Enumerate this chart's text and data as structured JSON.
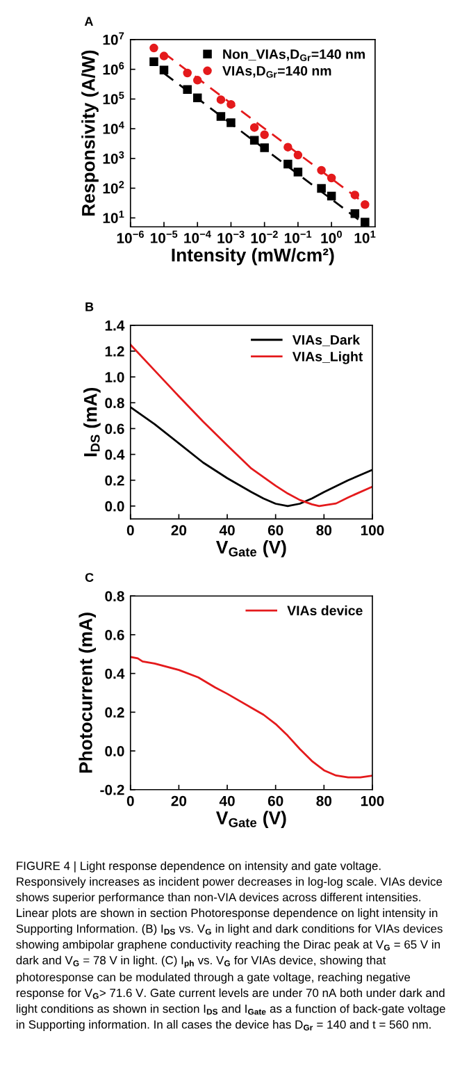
{
  "chart_data": [
    {
      "type": "scatter",
      "title": "A",
      "xlabel": "Intensity (mW/cm²)",
      "ylabel": "Responsivity (A/W)",
      "log": "xy",
      "xlim": [
        1e-06,
        20
      ],
      "ylim": [
        5,
        10000000.0
      ],
      "xticks": [
        {
          "value": 1e-06,
          "label": "10$^{−6}$"
        },
        {
          "value": 1e-05,
          "label": "10$^{−5}$"
        },
        {
          "value": 0.0001,
          "label": "10$^{−4}$"
        },
        {
          "value": 0.001,
          "label": "10$^{−3}$"
        },
        {
          "value": 0.01,
          "label": "10$^{−2}$"
        },
        {
          "value": 0.1,
          "label": "10$^{−1}$"
        },
        {
          "value": 1,
          "label": "10$^{0}$"
        },
        {
          "value": 10,
          "label": "10$^{1}$"
        }
      ],
      "yticks": [
        {
          "value": 10,
          "label": "10$^{1}$"
        },
        {
          "value": 100,
          "label": "10$^{2}$"
        },
        {
          "value": 1000,
          "label": "10$^{3}$"
        },
        {
          "value": 10000,
          "label": "10$^{4}$"
        },
        {
          "value": 100000,
          "label": "10$^{5}$"
        },
        {
          "value": 1000000,
          "label": "10$^{6}$"
        },
        {
          "value": 10000000,
          "label": "10$^{7}$"
        }
      ],
      "legend": "top right",
      "series": [
        {
          "name": "Non_VIAs,D$_{Gr}$=140 nm",
          "color": "#000000",
          "marker": "square",
          "x": [
            5e-06,
            1e-05,
            5e-05,
            0.0001,
            0.0005,
            0.001,
            0.005,
            0.01,
            0.05,
            0.1,
            0.5,
            1,
            5,
            10
          ],
          "values": [
            1800000.0,
            950000.0,
            210000.0,
            110000.0,
            26000.0,
            16000.0,
            4100,
            2300,
            650,
            350,
            98,
            54,
            14,
            7.2
          ]
        },
        {
          "name": "VIAs,D$_{Gr}$=140 nm",
          "color": "#e41a1c",
          "marker": "circle",
          "x": [
            5e-06,
            1e-05,
            5e-05,
            0.0001,
            0.0005,
            0.001,
            0.005,
            0.01,
            0.05,
            0.1,
            0.5,
            1,
            5,
            10
          ],
          "values": [
            5200000.0,
            2800000.0,
            750000.0,
            430000.0,
            95000.0,
            66000.0,
            11000.0,
            6300,
            2400,
            1300,
            400,
            220,
            59,
            28
          ]
        },
        {
          "type": "line",
          "color": "#000000",
          "line_style": "dashed",
          "x": [
            1e-05,
            10
          ],
          "values": [
            740000.0,
            6
          ]
        },
        {
          "type": "line",
          "color": "#e41a1c",
          "line_style": "dashed",
          "x": [
            1e-05,
            10
          ],
          "values": [
            3500000.0,
            30
          ]
        }
      ]
    },
    {
      "type": "line",
      "title": "B",
      "xlabel": "V$_{Gate}$ (V)",
      "ylabel": "I$_{DS}$ (mA)",
      "xlim": [
        0,
        100
      ],
      "ylim": [
        -0.1,
        1.4
      ],
      "xticks": [
        0,
        20,
        40,
        60,
        80,
        100
      ],
      "yticks": [
        {
          "value": 0,
          "label": "0.0"
        },
        0.2,
        0.4,
        0.6,
        0.8,
        {
          "value": 1,
          "label": "1.0"
        },
        1.2,
        1.4
      ],
      "legend": "top right",
      "series": [
        {
          "name": "VIAs_Dark",
          "color": "#000000",
          "x": [
            0,
            5,
            10,
            20,
            30,
            40,
            50,
            55,
            60,
            65,
            70,
            75,
            80,
            90,
            100
          ],
          "values": [
            0.766,
            0.7,
            0.634,
            0.486,
            0.337,
            0.216,
            0.108,
            0.058,
            0.018,
            0,
            0.018,
            0.058,
            0.108,
            0.2,
            0.28
          ]
        },
        {
          "name": "VIAs_Light",
          "color": "#e41a1c",
          "x": [
            0,
            10,
            20,
            30,
            40,
            50,
            60,
            65,
            70,
            75,
            78,
            85,
            90,
            100
          ],
          "values": [
            1.25,
            1.05,
            0.85,
            0.655,
            0.47,
            0.29,
            0.157,
            0.097,
            0.047,
            0.013,
            0,
            0.02,
            0.067,
            0.15
          ]
        }
      ]
    },
    {
      "type": "line",
      "title": "C",
      "xlabel": "V$_{Gate}$ (V)",
      "ylabel": "Photocurrent (mA)",
      "xlim": [
        0,
        100
      ],
      "ylim": [
        -0.2,
        0.8
      ],
      "xticks": [
        0,
        20,
        40,
        60,
        80,
        100
      ],
      "yticks": [
        -0.2,
        {
          "value": 0,
          "label": "0.0"
        },
        0.2,
        0.4,
        0.6,
        0.8
      ],
      "legend": "top right",
      "series": [
        {
          "name": "VIAs device",
          "color": "#e41a1c",
          "x": [
            0,
            3,
            5,
            10,
            20,
            28,
            35,
            40,
            50,
            55,
            60,
            65,
            70,
            75,
            80,
            85,
            90,
            95,
            100
          ],
          "values": [
            0.485,
            0.478,
            0.462,
            0.451,
            0.418,
            0.38,
            0.328,
            0.295,
            0.223,
            0.187,
            0.139,
            0.079,
            0.01,
            -0.052,
            -0.1,
            -0.127,
            -0.137,
            -0.137,
            -0.128
          ]
        }
      ],
      "annotations": [
        "FIGURE 4 | Light response dependence on intensity and gate voltage. Responsively increases as incident power decreases in log-log scale. VIAs device shows superior performance than non-VIA devices across different intensities. Linear plots are shown in section Photoresponse dependence on light intensity in Supporting Information. (B) I$_{DS}$ vs. V$_{G}$ in light and dark conditions for VIAs devices showing ambipolar graphene conductivity reaching the Dirac peak at V$_{G}$ = 65 V in dark and V$_{G}$ = 78 V in light. (C) I$_{ph}$ vs. V$_{G}$ for VIAs device, showing that photoresponse can be modulated through a gate voltage, reaching negative response for V$_{G}$> 71.6 V. Gate current levels are under 70 nA both under dark and light conditions as shown in section I$_{DS}$ and I$_{Gate}$ as a function of back-gate voltage in Supporting information. In all cases the device has D$_{Gr}$ = 140 and t = 560 nm."
      ]
    }
  ]
}
